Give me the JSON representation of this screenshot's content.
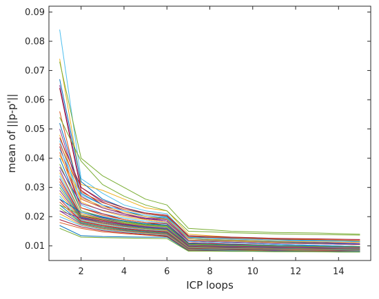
{
  "chart_data": {
    "type": "line",
    "title": "",
    "xlabel": "ICP loops",
    "ylabel": "mean of ||p-p'||",
    "xlim": [
      0.5,
      15.5
    ],
    "ylim": [
      0.005,
      0.092
    ],
    "xticks": [
      2,
      4,
      6,
      8,
      10,
      12,
      14
    ],
    "yticks": [
      0.01,
      0.02,
      0.03,
      0.04,
      0.05,
      0.06,
      0.07,
      0.08,
      0.09
    ],
    "ytick_labels": [
      "0.01",
      "0.02",
      "0.03",
      "0.04",
      "0.05",
      "0.06",
      "0.07",
      "0.08",
      "0.09"
    ],
    "grid": false,
    "legend": "none",
    "x": [
      1,
      2,
      3,
      4,
      5,
      6,
      7,
      8,
      9,
      10,
      11,
      12,
      13,
      14,
      15
    ],
    "series_count_note": "many overlapping series (representative subset reconstructed)",
    "series": [
      {
        "color": "#4dbeee",
        "values": [
          0.084,
          0.033,
          0.028,
          0.024,
          0.022,
          0.021,
          0.0135,
          0.013,
          0.0128,
          0.0126,
          0.0124,
          0.0122,
          0.012,
          0.0118,
          0.0116
        ]
      },
      {
        "color": "#edb120",
        "values": [
          0.074,
          0.031,
          0.029,
          0.026,
          0.023,
          0.022,
          0.014,
          0.0135,
          0.013,
          0.0128,
          0.0126,
          0.0124,
          0.0122,
          0.012,
          0.0118
        ]
      },
      {
        "color": "#77ac30",
        "values": [
          0.073,
          0.04,
          0.034,
          0.03,
          0.026,
          0.024,
          0.016,
          0.0155,
          0.015,
          0.0148,
          0.0146,
          0.0145,
          0.0144,
          0.0142,
          0.014
        ]
      },
      {
        "color": "#0072bd",
        "values": [
          0.067,
          0.032,
          0.026,
          0.023,
          0.021,
          0.02,
          0.0125,
          0.012,
          0.0118,
          0.0116,
          0.0114,
          0.0112,
          0.011,
          0.0108,
          0.0106
        ]
      },
      {
        "color": "#7e2f8e",
        "values": [
          0.065,
          0.03,
          0.025,
          0.022,
          0.02,
          0.019,
          0.012,
          0.0118,
          0.0116,
          0.0114,
          0.0112,
          0.011,
          0.0108,
          0.0106,
          0.0104
        ]
      },
      {
        "color": "#a2142f",
        "values": [
          0.064,
          0.029,
          0.024,
          0.021,
          0.0195,
          0.0185,
          0.0115,
          0.0112,
          0.011,
          0.0108,
          0.0106,
          0.0104,
          0.0102,
          0.01,
          0.0098
        ]
      },
      {
        "color": "#d95319",
        "values": [
          0.056,
          0.026,
          0.023,
          0.021,
          0.019,
          0.018,
          0.011,
          0.0108,
          0.0106,
          0.0104,
          0.0102,
          0.01,
          0.0099,
          0.0098,
          0.0097
        ]
      },
      {
        "color": "#77ac30",
        "values": [
          0.054,
          0.039,
          0.031,
          0.027,
          0.024,
          0.022,
          0.015,
          0.0148,
          0.0145,
          0.0143,
          0.0141,
          0.014,
          0.0139,
          0.0138,
          0.0137
        ]
      },
      {
        "color": "#0072bd",
        "values": [
          0.052,
          0.028,
          0.024,
          0.022,
          0.02,
          0.0195,
          0.013,
          0.0128,
          0.0126,
          0.0124,
          0.0122,
          0.012,
          0.0118,
          0.0116,
          0.0114
        ]
      },
      {
        "color": "#7e2f8e",
        "values": [
          0.05,
          0.027,
          0.023,
          0.021,
          0.0195,
          0.019,
          0.0125,
          0.0122,
          0.012,
          0.0118,
          0.0116,
          0.0114,
          0.0112,
          0.011,
          0.0108
        ]
      },
      {
        "color": "#edb120",
        "values": [
          0.048,
          0.025,
          0.022,
          0.02,
          0.019,
          0.018,
          0.012,
          0.0118,
          0.0116,
          0.0114,
          0.0112,
          0.011,
          0.0108,
          0.0106,
          0.0104
        ]
      },
      {
        "color": "#4dbeee",
        "values": [
          0.046,
          0.024,
          0.021,
          0.0195,
          0.0185,
          0.0178,
          0.0115,
          0.0112,
          0.011,
          0.0108,
          0.0106,
          0.0104,
          0.0102,
          0.01,
          0.0098
        ]
      },
      {
        "color": "#a2142f",
        "values": [
          0.044,
          0.023,
          0.021,
          0.019,
          0.018,
          0.0175,
          0.011,
          0.0108,
          0.0106,
          0.0104,
          0.0102,
          0.01,
          0.0099,
          0.0098,
          0.0097
        ]
      },
      {
        "color": "#d95319",
        "values": [
          0.042,
          0.023,
          0.0205,
          0.019,
          0.018,
          0.017,
          0.0108,
          0.0105,
          0.0103,
          0.0101,
          0.01,
          0.0099,
          0.0098,
          0.0097,
          0.0096
        ]
      },
      {
        "color": "#0072bd",
        "values": [
          0.04,
          0.022,
          0.02,
          0.0185,
          0.0175,
          0.017,
          0.0105,
          0.0103,
          0.0101,
          0.01,
          0.0099,
          0.0098,
          0.0097,
          0.0096,
          0.0095
        ]
      },
      {
        "color": "#77ac30",
        "values": [
          0.038,
          0.022,
          0.0198,
          0.0183,
          0.0173,
          0.0168,
          0.0104,
          0.0102,
          0.01,
          0.0099,
          0.0098,
          0.0097,
          0.0096,
          0.0095,
          0.0094
        ]
      },
      {
        "color": "#7e2f8e",
        "values": [
          0.036,
          0.021,
          0.0195,
          0.018,
          0.017,
          0.0165,
          0.0102,
          0.01,
          0.0099,
          0.0098,
          0.0097,
          0.0096,
          0.0095,
          0.0094,
          0.0093
        ]
      },
      {
        "color": "#edb120",
        "values": [
          0.035,
          0.021,
          0.0192,
          0.0178,
          0.0168,
          0.0163,
          0.0101,
          0.0099,
          0.0098,
          0.0097,
          0.0096,
          0.0095,
          0.0094,
          0.0093,
          0.0092
        ]
      },
      {
        "color": "#4dbeee",
        "values": [
          0.034,
          0.0205,
          0.019,
          0.0176,
          0.0167,
          0.0162,
          0.01,
          0.0098,
          0.0097,
          0.0096,
          0.0095,
          0.0094,
          0.0093,
          0.0092,
          0.0091
        ]
      },
      {
        "color": "#a2142f",
        "values": [
          0.033,
          0.0203,
          0.0188,
          0.0175,
          0.0166,
          0.016,
          0.0099,
          0.0097,
          0.0096,
          0.0095,
          0.0094,
          0.0093,
          0.0092,
          0.0091,
          0.009
        ]
      },
      {
        "color": "#d95319",
        "values": [
          0.032,
          0.02,
          0.0185,
          0.0173,
          0.0164,
          0.0158,
          0.0098,
          0.0096,
          0.0095,
          0.0094,
          0.0093,
          0.0092,
          0.0091,
          0.009,
          0.0089
        ]
      },
      {
        "color": "#0072bd",
        "values": [
          0.031,
          0.0198,
          0.0183,
          0.0171,
          0.0162,
          0.0157,
          0.0097,
          0.0095,
          0.0094,
          0.0093,
          0.0092,
          0.0091,
          0.009,
          0.0089,
          0.0088
        ]
      },
      {
        "color": "#77ac30",
        "values": [
          0.03,
          0.0195,
          0.018,
          0.0169,
          0.016,
          0.0155,
          0.0096,
          0.0094,
          0.0093,
          0.0092,
          0.0091,
          0.009,
          0.0089,
          0.0088,
          0.0087
        ]
      },
      {
        "color": "#7e2f8e",
        "values": [
          0.029,
          0.0193,
          0.0178,
          0.0167,
          0.0158,
          0.0153,
          0.0095,
          0.0093,
          0.0092,
          0.0091,
          0.009,
          0.0089,
          0.0088,
          0.0087,
          0.0086
        ]
      },
      {
        "color": "#edb120",
        "values": [
          0.028,
          0.019,
          0.0175,
          0.0165,
          0.0157,
          0.0152,
          0.0094,
          0.0092,
          0.0091,
          0.009,
          0.0089,
          0.0088,
          0.0087,
          0.0086,
          0.0085
        ]
      },
      {
        "color": "#4dbeee",
        "values": [
          0.027,
          0.0188,
          0.0173,
          0.0163,
          0.0155,
          0.015,
          0.0093,
          0.0091,
          0.009,
          0.0089,
          0.0088,
          0.0087,
          0.0086,
          0.0085,
          0.0084
        ]
      },
      {
        "color": "#a2142f",
        "values": [
          0.026,
          0.0185,
          0.017,
          0.016,
          0.0153,
          0.0148,
          0.0092,
          0.009,
          0.0089,
          0.0088,
          0.0087,
          0.0086,
          0.0085,
          0.0084,
          0.0083
        ]
      },
      {
        "color": "#d95319",
        "values": [
          0.025,
          0.0183,
          0.0168,
          0.0158,
          0.0151,
          0.0146,
          0.0091,
          0.0089,
          0.0088,
          0.0087,
          0.0086,
          0.0085,
          0.0084,
          0.0083,
          0.0082
        ]
      },
      {
        "color": "#0072bd",
        "values": [
          0.024,
          0.018,
          0.0165,
          0.0156,
          0.0149,
          0.0144,
          0.009,
          0.0088,
          0.0087,
          0.0086,
          0.0085,
          0.0084,
          0.0083,
          0.0083,
          0.0082
        ]
      },
      {
        "color": "#77ac30",
        "values": [
          0.023,
          0.0178,
          0.0163,
          0.0154,
          0.0147,
          0.0142,
          0.0089,
          0.0087,
          0.0086,
          0.0085,
          0.0084,
          0.0084,
          0.0083,
          0.0082,
          0.0082
        ]
      },
      {
        "color": "#7e2f8e",
        "values": [
          0.022,
          0.0175,
          0.016,
          0.0152,
          0.0145,
          0.014,
          0.0088,
          0.0086,
          0.0085,
          0.0084,
          0.0084,
          0.0083,
          0.0083,
          0.0082,
          0.0081
        ]
      },
      {
        "color": "#edb120",
        "values": [
          0.021,
          0.0172,
          0.0158,
          0.015,
          0.0143,
          0.0138,
          0.0087,
          0.0085,
          0.0084,
          0.0084,
          0.0083,
          0.0083,
          0.0082,
          0.0082,
          0.0081
        ]
      },
      {
        "color": "#4dbeee",
        "values": [
          0.02,
          0.017,
          0.0155,
          0.0148,
          0.0141,
          0.0136,
          0.0086,
          0.0085,
          0.0084,
          0.0083,
          0.0083,
          0.0082,
          0.0082,
          0.0081,
          0.0081
        ]
      },
      {
        "color": "#a2142f",
        "values": [
          0.019,
          0.0165,
          0.0152,
          0.0145,
          0.0139,
          0.0134,
          0.0085,
          0.0084,
          0.0083,
          0.0083,
          0.0082,
          0.0082,
          0.0081,
          0.0081,
          0.008
        ]
      },
      {
        "color": "#d95319",
        "values": [
          0.018,
          0.016,
          0.0148,
          0.0142,
          0.0137,
          0.0132,
          0.0084,
          0.0083,
          0.0083,
          0.0082,
          0.0082,
          0.0081,
          0.0081,
          0.008,
          0.008
        ]
      },
      {
        "color": "#0072bd",
        "values": [
          0.017,
          0.0135,
          0.0132,
          0.0131,
          0.013,
          0.013,
          0.0083,
          0.0083,
          0.0082,
          0.0082,
          0.0081,
          0.0081,
          0.008,
          0.008,
          0.008
        ]
      },
      {
        "color": "#77ac30",
        "values": [
          0.016,
          0.013,
          0.0128,
          0.0127,
          0.0126,
          0.0125,
          0.0082,
          0.0082,
          0.0081,
          0.0081,
          0.008,
          0.008,
          0.008,
          0.0079,
          0.0079
        ]
      },
      {
        "color": "#7e2f8e",
        "values": [
          0.037,
          0.0245,
          0.0222,
          0.0205,
          0.0193,
          0.0185,
          0.0118,
          0.0115,
          0.0113,
          0.0111,
          0.0109,
          0.0108,
          0.0107,
          0.0106,
          0.0105
        ]
      },
      {
        "color": "#edb120",
        "values": [
          0.041,
          0.0265,
          0.0235,
          0.0215,
          0.02,
          0.0192,
          0.0125,
          0.0122,
          0.012,
          0.0118,
          0.0116,
          0.0115,
          0.0114,
          0.0113,
          0.0112
        ]
      },
      {
        "color": "#4dbeee",
        "values": [
          0.043,
          0.0275,
          0.024,
          0.022,
          0.0205,
          0.0197,
          0.0128,
          0.0125,
          0.0123,
          0.0121,
          0.0119,
          0.0118,
          0.0117,
          0.0116,
          0.0115
        ]
      },
      {
        "color": "#d95319",
        "values": [
          0.045,
          0.0285,
          0.0248,
          0.0225,
          0.021,
          0.0202,
          0.0132,
          0.0129,
          0.0127,
          0.0125,
          0.0123,
          0.0122,
          0.0121,
          0.012,
          0.0119
        ]
      },
      {
        "color": "#a2142f",
        "values": [
          0.047,
          0.03,
          0.0255,
          0.023,
          0.0213,
          0.0205,
          0.0135,
          0.0132,
          0.013,
          0.0128,
          0.0126,
          0.0125,
          0.0124,
          0.0123,
          0.0122
        ]
      },
      {
        "color": "#0072bd",
        "values": [
          0.026,
          0.0215,
          0.0198,
          0.0186,
          0.0176,
          0.0171,
          0.0108,
          0.0106,
          0.0104,
          0.0103,
          0.0102,
          0.0101,
          0.01,
          0.0099,
          0.0098
        ]
      },
      {
        "color": "#77ac30",
        "values": [
          0.024,
          0.0205,
          0.0191,
          0.018,
          0.0171,
          0.0166,
          0.0106,
          0.0104,
          0.0102,
          0.0101,
          0.01,
          0.0099,
          0.0098,
          0.0097,
          0.0097
        ]
      },
      {
        "color": "#7e2f8e",
        "values": [
          0.022,
          0.0195,
          0.0183,
          0.0173,
          0.0165,
          0.016,
          0.0102,
          0.01,
          0.0099,
          0.0098,
          0.0097,
          0.0096,
          0.0095,
          0.0095,
          0.0094
        ]
      }
    ]
  }
}
